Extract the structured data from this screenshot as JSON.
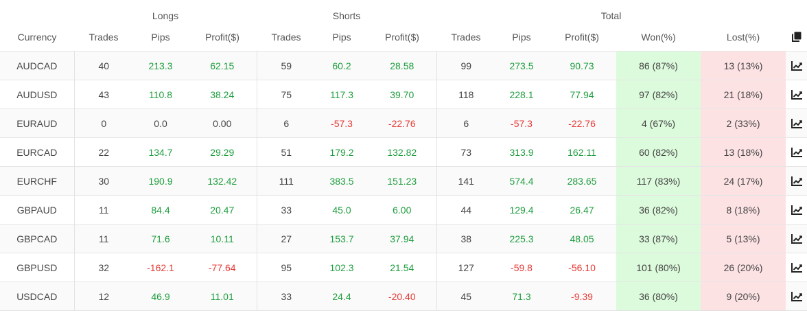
{
  "header": {
    "groups": {
      "longs": "Longs",
      "shorts": "Shorts",
      "total": "Total"
    },
    "columns": {
      "currency": "Currency",
      "longs_trades": "Trades",
      "longs_pips": "Pips",
      "longs_profit": "Profit($)",
      "shorts_trades": "Trades",
      "shorts_pips": "Pips",
      "shorts_profit": "Profit($)",
      "total_trades": "Trades",
      "total_pips": "Pips",
      "total_profit": "Profit($)",
      "won": "Won(%)",
      "lost": "Lost(%)"
    },
    "copy_icon": "copy-icon"
  },
  "colors": {
    "positive": "#1e9e3e",
    "negative": "#e53935",
    "won_bg": "#dcfadc",
    "lost_bg": "#fde2e4"
  },
  "rows": [
    {
      "currency": "AUDCAD",
      "longs_trades": "40",
      "longs_pips": "213.3",
      "longs_profit": "62.15",
      "shorts_trades": "59",
      "shorts_pips": "60.2",
      "shorts_profit": "28.58",
      "total_trades": "99",
      "total_pips": "273.5",
      "total_profit": "90.73",
      "won": "86 (87%)",
      "lost": "13 (13%)",
      "icon": "chart-icon"
    },
    {
      "currency": "AUDUSD",
      "longs_trades": "43",
      "longs_pips": "110.8",
      "longs_profit": "38.24",
      "shorts_trades": "75",
      "shorts_pips": "117.3",
      "shorts_profit": "39.70",
      "total_trades": "118",
      "total_pips": "228.1",
      "total_profit": "77.94",
      "won": "97 (82%)",
      "lost": "21 (18%)",
      "icon": "chart-icon"
    },
    {
      "currency": "EURAUD",
      "longs_trades": "0",
      "longs_pips": "0.0",
      "longs_profit": "0.00",
      "shorts_trades": "6",
      "shorts_pips": "-57.3",
      "shorts_profit": "-22.76",
      "total_trades": "6",
      "total_pips": "-57.3",
      "total_profit": "-22.76",
      "won": "4 (67%)",
      "lost": "2 (33%)",
      "icon": "chart-icon"
    },
    {
      "currency": "EURCAD",
      "longs_trades": "22",
      "longs_pips": "134.7",
      "longs_profit": "29.29",
      "shorts_trades": "51",
      "shorts_pips": "179.2",
      "shorts_profit": "132.82",
      "total_trades": "73",
      "total_pips": "313.9",
      "total_profit": "162.11",
      "won": "60 (82%)",
      "lost": "13 (18%)",
      "icon": "chart-icon"
    },
    {
      "currency": "EURCHF",
      "longs_trades": "30",
      "longs_pips": "190.9",
      "longs_profit": "132.42",
      "shorts_trades": "111",
      "shorts_pips": "383.5",
      "shorts_profit": "151.23",
      "total_trades": "141",
      "total_pips": "574.4",
      "total_profit": "283.65",
      "won": "117 (83%)",
      "lost": "24 (17%)",
      "icon": "chart-icon"
    },
    {
      "currency": "GBPAUD",
      "longs_trades": "11",
      "longs_pips": "84.4",
      "longs_profit": "20.47",
      "shorts_trades": "33",
      "shorts_pips": "45.0",
      "shorts_profit": "6.00",
      "total_trades": "44",
      "total_pips": "129.4",
      "total_profit": "26.47",
      "won": "36 (82%)",
      "lost": "8 (18%)",
      "icon": "chart-icon"
    },
    {
      "currency": "GBPCAD",
      "longs_trades": "11",
      "longs_pips": "71.6",
      "longs_profit": "10.11",
      "shorts_trades": "27",
      "shorts_pips": "153.7",
      "shorts_profit": "37.94",
      "total_trades": "38",
      "total_pips": "225.3",
      "total_profit": "48.05",
      "won": "33 (87%)",
      "lost": "5 (13%)",
      "icon": "chart-icon"
    },
    {
      "currency": "GBPUSD",
      "longs_trades": "32",
      "longs_pips": "-162.1",
      "longs_profit": "-77.64",
      "shorts_trades": "95",
      "shorts_pips": "102.3",
      "shorts_profit": "21.54",
      "total_trades": "127",
      "total_pips": "-59.8",
      "total_profit": "-56.10",
      "won": "101 (80%)",
      "lost": "26 (20%)",
      "icon": "chart-icon"
    },
    {
      "currency": "USDCAD",
      "longs_trades": "12",
      "longs_pips": "46.9",
      "longs_profit": "11.01",
      "shorts_trades": "33",
      "shorts_pips": "24.4",
      "shorts_profit": "-20.40",
      "total_trades": "45",
      "total_pips": "71.3",
      "total_profit": "-9.39",
      "won": "36 (80%)",
      "lost": "9 (20%)",
      "icon": "chart-icon"
    }
  ]
}
